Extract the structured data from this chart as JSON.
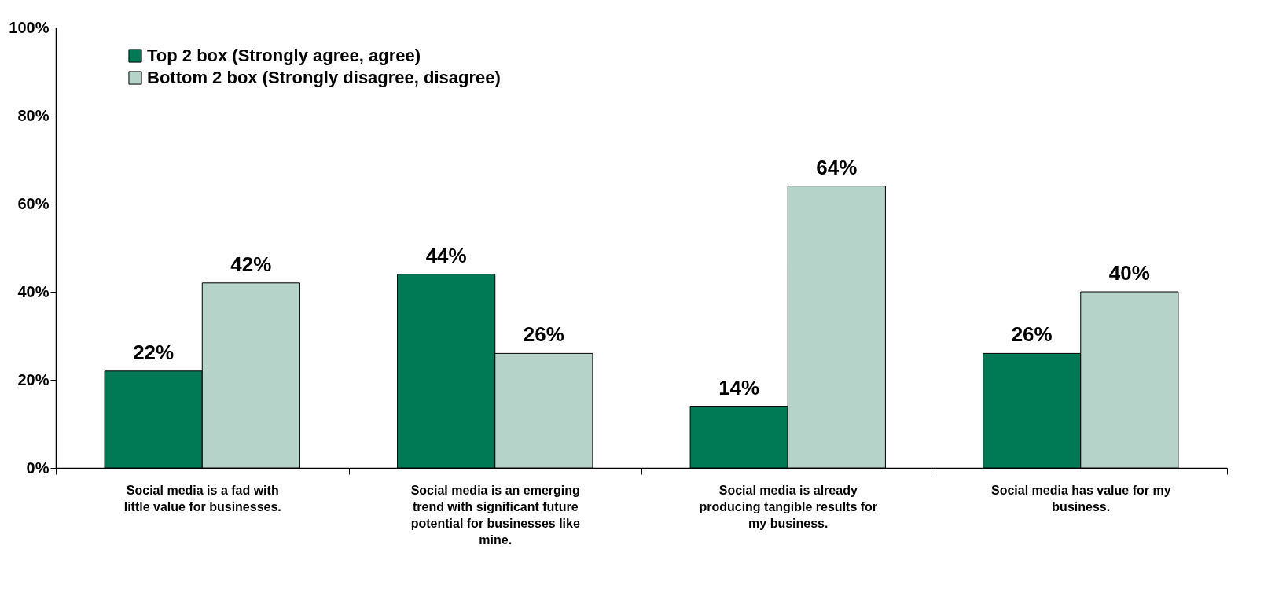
{
  "chart_data": {
    "type": "bar",
    "categories": [
      "Social media is a fad with little value for businesses.",
      "Social media is an emerging trend with significant future potential for businesses like mine.",
      "Social media is already producing tangible results for my business.",
      "Social media has value for my business."
    ],
    "series": [
      {
        "name": "Top 2 box (Strongly agree, agree)",
        "color": "#007a55",
        "values": [
          22,
          44,
          14,
          26
        ],
        "value_labels": [
          "22%",
          "44%",
          "14%",
          "26%"
        ]
      },
      {
        "name": "Bottom 2 box (Strongly disagree, disagree)",
        "color": "#b5d3c9",
        "values": [
          42,
          26,
          64,
          40
        ],
        "value_labels": [
          "42%",
          "26%",
          "64%",
          "40%"
        ]
      }
    ],
    "ylim": [
      0,
      100
    ],
    "yticks": [
      {
        "value": 0,
        "label": "0%"
      },
      {
        "value": 20,
        "label": "20%"
      },
      {
        "value": 40,
        "label": "40%"
      },
      {
        "value": 60,
        "label": "60%"
      },
      {
        "value": 80,
        "label": "80%"
      },
      {
        "value": 100,
        "label": "100%"
      }
    ],
    "grid": false,
    "legend": "top left"
  }
}
